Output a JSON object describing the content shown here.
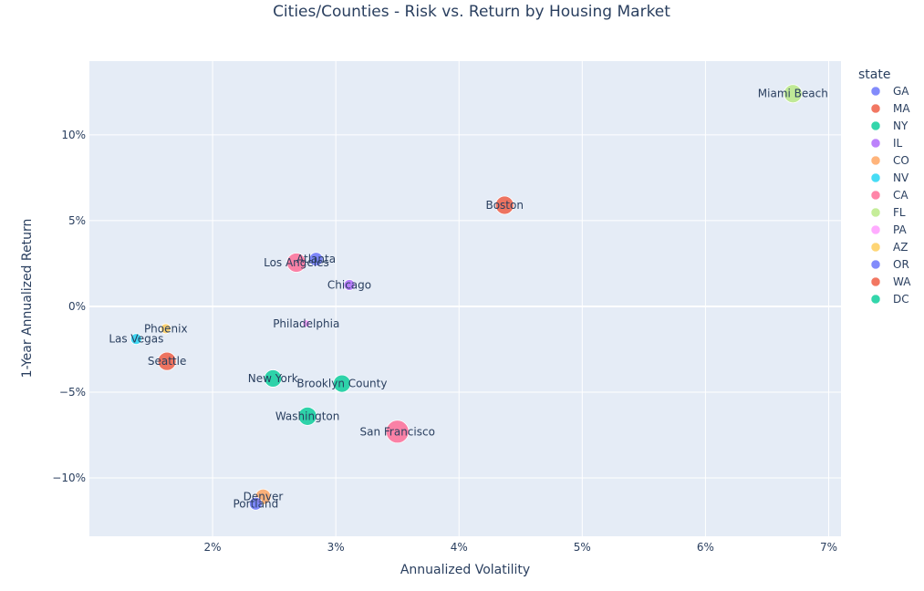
{
  "chart_data": {
    "type": "scatter",
    "title": "Cities/Counties - Risk vs. Return by Housing Market",
    "xlabel": "Annualized Volatility",
    "ylabel": "1-Year Annualized Return",
    "xlim": [
      1.0,
      7.1
    ],
    "ylim": [
      -13.4,
      14.3
    ],
    "x_ticks": [
      2,
      3,
      4,
      5,
      6,
      7
    ],
    "x_tick_labels": [
      "2%",
      "3%",
      "4%",
      "5%",
      "6%",
      "7%"
    ],
    "y_ticks": [
      -10,
      -5,
      0,
      5,
      10
    ],
    "y_tick_labels": [
      "−10%",
      "−5%",
      "0%",
      "5%",
      "10%"
    ],
    "grid": true,
    "legend_title": "state",
    "legend_position": "right",
    "series": [
      {
        "name": "GA",
        "color": "#636efa",
        "points": [
          {
            "label": "Atlanta",
            "x": 2.84,
            "y": 2.75,
            "size": 15
          }
        ]
      },
      {
        "name": "MA",
        "color": "#EF553B",
        "points": [
          {
            "label": "Boston",
            "x": 4.37,
            "y": 5.9,
            "size": 20
          }
        ]
      },
      {
        "name": "NY",
        "color": "#00cc96",
        "points": [
          {
            "label": "New York",
            "x": 2.49,
            "y": -4.2,
            "size": 19
          },
          {
            "label": "Brooklyn County",
            "x": 3.05,
            "y": -4.5,
            "size": 19
          }
        ]
      },
      {
        "name": "IL",
        "color": "#ab63fa",
        "points": [
          {
            "label": "Chicago",
            "x": 3.11,
            "y": 1.25,
            "size": 12
          }
        ]
      },
      {
        "name": "CO",
        "color": "#FFA15A",
        "points": [
          {
            "label": "Denver",
            "x": 2.41,
            "y": -11.1,
            "size": 17
          }
        ]
      },
      {
        "name": "NV",
        "color": "#19d3f3",
        "points": [
          {
            "label": "Las Vegas",
            "x": 1.38,
            "y": -1.9,
            "size": 12
          }
        ]
      },
      {
        "name": "CA",
        "color": "#FF6692",
        "points": [
          {
            "label": "Los Angeles",
            "x": 2.68,
            "y": 2.55,
            "size": 21
          },
          {
            "label": "San Francisco",
            "x": 3.5,
            "y": -7.3,
            "size": 25
          }
        ]
      },
      {
        "name": "FL",
        "color": "#B6E880",
        "points": [
          {
            "label": "Miami Beach",
            "x": 6.71,
            "y": 12.4,
            "size": 20
          }
        ]
      },
      {
        "name": "PA",
        "color": "#FF97FF",
        "points": [
          {
            "label": "Philadelphia",
            "x": 2.76,
            "y": -1.0,
            "size": 8
          }
        ]
      },
      {
        "name": "AZ",
        "color": "#FECB52",
        "points": [
          {
            "label": "Phoenix",
            "x": 1.62,
            "y": -1.3,
            "size": 11
          }
        ]
      },
      {
        "name": "OR",
        "color": "#636efa",
        "points": [
          {
            "label": "Portland",
            "x": 2.35,
            "y": -11.5,
            "size": 14
          }
        ]
      },
      {
        "name": "WA",
        "color": "#EF553B",
        "points": [
          {
            "label": "Seattle",
            "x": 1.63,
            "y": -3.2,
            "size": 20
          }
        ]
      },
      {
        "name": "DC",
        "color": "#00cc96",
        "points": [
          {
            "label": "Washington",
            "x": 2.77,
            "y": -6.4,
            "size": 20
          }
        ]
      }
    ]
  }
}
